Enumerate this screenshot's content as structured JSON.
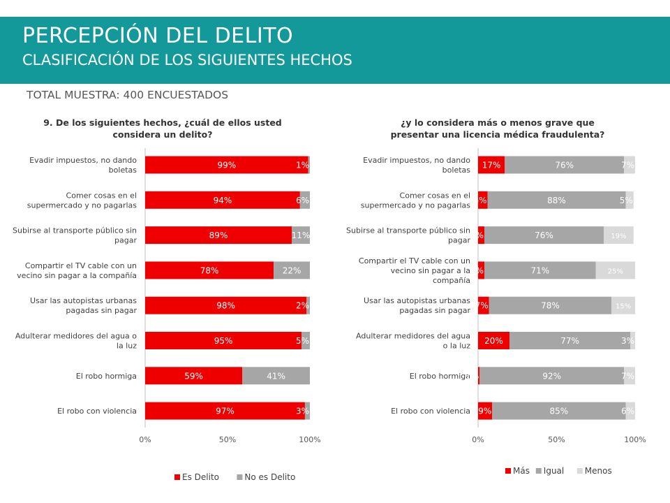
{
  "header": {
    "title": "PERCEPCIÓN DEL DELITO",
    "subtitle": "CLASIFICACIÓN DE LOS SIGUIENTES HECHOS"
  },
  "sample_label": "TOTAL MUESTRA: 400 ENCUESTADOS",
  "colors": {
    "banner": "#13999a",
    "red": "#ee0000",
    "gray": "#a6a6a6",
    "light": "#d9d9d9"
  },
  "chart_data": [
    {
      "type": "bar",
      "orientation": "horizontal",
      "stacked": true,
      "title": [
        "9. De los siguientes hechos, ¿cuál de ellos usted",
        "considera un delito?"
      ],
      "categories": [
        [
          "Evadir impuestos, no dando",
          "boletas"
        ],
        [
          "Comer cosas en el",
          "supermercado y no pagarlas"
        ],
        [
          "Subirse al transporte público sin",
          "pagar"
        ],
        [
          "Compartir el TV cable con un",
          "vecino sin pagar a la compañía"
        ],
        [
          "Usar las autopistas urbanas",
          "pagadas sin pagar"
        ],
        [
          "Adulterar medidores del agua o",
          "la luz"
        ],
        [
          "El robo hormiga"
        ],
        [
          "El robo con violencia"
        ]
      ],
      "series": [
        {
          "name": "Es Delito",
          "color": "#ee0000",
          "values": [
            99,
            94,
            89,
            78,
            98,
            95,
            59,
            97
          ]
        },
        {
          "name": "No es Delito",
          "color": "#a6a6a6",
          "values": [
            1,
            6,
            11,
            22,
            2,
            5,
            41,
            3
          ]
        }
      ],
      "xlim": [
        0,
        100
      ],
      "xticks": [
        "0%",
        "50%",
        "100%"
      ],
      "legend": "bottom"
    },
    {
      "type": "bar",
      "orientation": "horizontal",
      "stacked": true,
      "title": [
        "¿y lo considera más o menos grave que",
        "presentar una licencia médica fraudulenta?"
      ],
      "categories": [
        [
          "Evadir impuestos, no dando",
          "boletas"
        ],
        [
          "Comer cosas en el",
          "supermercado y no pagarlas"
        ],
        [
          "Subirse al transporte público sin",
          "pagar"
        ],
        [
          "Compartir el TV cable con un",
          "vecino sin pagar a la",
          "compañía"
        ],
        [
          "Usar las autopistas urbanas",
          "pagadas sin pagar"
        ],
        [
          "Adulterar medidores del agua",
          "o la luz"
        ],
        [
          "El robo hormiga"
        ],
        [
          "El robo con violencia"
        ]
      ],
      "series": [
        {
          "name": "Más",
          "color": "#ee0000",
          "values": [
            17,
            6,
            4,
            4,
            7,
            20,
            1,
            9
          ]
        },
        {
          "name": "Igual",
          "color": "#a6a6a6",
          "values": [
            76,
            88,
            76,
            71,
            78,
            77,
            92,
            85
          ]
        },
        {
          "name": "Menos",
          "color": "#d9d9d9",
          "values": [
            7,
            5,
            19,
            25,
            15,
            3,
            7,
            6
          ]
        }
      ],
      "xlim": [
        0,
        100
      ],
      "xticks": [
        "0%",
        "50%",
        "100%"
      ],
      "legend": "bottom"
    }
  ]
}
